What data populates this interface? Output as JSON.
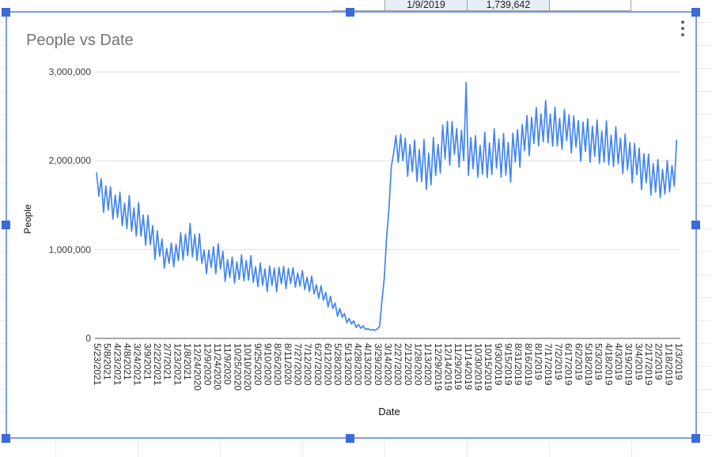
{
  "spreadsheet": {
    "date_cell": "1/9/2019",
    "people_cell": "1,739,642"
  },
  "chart": {
    "title": "People vs Date",
    "menu_icon": "vertical-ellipsis-icon"
  },
  "chart_data": {
    "type": "line",
    "title": "People vs Date",
    "xlabel": "Date",
    "ylabel": "People",
    "legend": "none",
    "grid": true,
    "x_axis": {
      "direction": "dates descend left to right (newest first)",
      "tick_interval_days": 15,
      "tick_labels": [
        "5/23/2021",
        "5/8/2021",
        "4/23/2021",
        "4/8/2021",
        "3/24/2021",
        "3/9/2021",
        "2/22/2021",
        "2/7/2021",
        "1/23/2021",
        "1/8/2021",
        "12/24/2020",
        "12/9/2020",
        "11/24/2020",
        "11/9/2020",
        "10/25/2020",
        "10/10/2020",
        "9/25/2020",
        "9/10/2020",
        "8/26/2020",
        "8/11/2020",
        "7/27/2020",
        "7/12/2020",
        "6/27/2020",
        "6/12/2020",
        "5/28/2020",
        "5/13/2020",
        "4/28/2020",
        "4/13/2020",
        "3/29/2020",
        "3/14/2020",
        "2/27/2020",
        "2/12/2020",
        "1/28/2020",
        "1/13/2020",
        "12/29/2019",
        "12/14/2019",
        "11/29/2019",
        "11/14/2019",
        "10/30/2019",
        "10/15/2019",
        "9/30/2019",
        "9/15/2019",
        "8/31/2019",
        "8/16/2019",
        "8/1/2019",
        "7/17/2019",
        "7/2/2019",
        "6/17/2019",
        "6/2/2019",
        "5/18/2019",
        "5/3/2019",
        "4/18/2019",
        "4/3/2019",
        "3/19/2019",
        "3/4/2019",
        "2/17/2019",
        "2/2/2019",
        "1/18/2019",
        "1/3/2019"
      ]
    },
    "y_axis": {
      "min": 0,
      "max": 3000000,
      "ticks": [
        {
          "value": 0,
          "label": "0"
        },
        {
          "value": 1000000,
          "label": "1,000,000"
        },
        {
          "value": 2000000,
          "label": "2,000,000"
        },
        {
          "value": 3000000,
          "label": "3,000,000"
        }
      ]
    },
    "series": [
      {
        "name": "People",
        "color": "#4285f4",
        "description": "Daily values with a 7-day (weekly) zigzag oscillation; x positions given as tick-label index (0 = 5/23/2021 ... 58 = 1/3/2019, 15 days per index unit).",
        "oscillation_period_days": 7,
        "envelope": [
          [
            0,
            1550000,
            1930000
          ],
          [
            1,
            1350000,
            1800000
          ],
          [
            2,
            1280000,
            1700000
          ],
          [
            3,
            1150000,
            1620000
          ],
          [
            4,
            1080000,
            1580000
          ],
          [
            5,
            1000000,
            1460000
          ],
          [
            6,
            850000,
            1300000
          ],
          [
            7,
            760000,
            1080000
          ],
          [
            8,
            780000,
            1150000
          ],
          [
            9,
            850000,
            1305000
          ],
          [
            10,
            820000,
            1280000
          ],
          [
            11,
            700000,
            1000000
          ],
          [
            12,
            720000,
            1170000
          ],
          [
            13,
            610000,
            960000
          ],
          [
            14,
            580000,
            950000
          ],
          [
            15,
            600000,
            970000
          ],
          [
            16,
            540000,
            880000
          ],
          [
            17,
            500000,
            860000
          ],
          [
            18,
            520000,
            860000
          ],
          [
            19,
            550000,
            860000
          ],
          [
            20,
            550000,
            800000
          ],
          [
            21,
            500000,
            750000
          ],
          [
            22,
            440000,
            650000
          ],
          [
            23,
            350000,
            550000
          ],
          [
            24,
            250000,
            400000
          ],
          [
            25,
            170000,
            260000
          ],
          [
            26,
            110000,
            180000
          ],
          [
            27,
            90000,
            120000
          ],
          [
            27.7,
            87000,
            95000
          ],
          [
            28.2,
            95000,
            120000
          ],
          [
            28.5,
            420000,
            460000
          ],
          [
            28.75,
            720000,
            780000
          ],
          [
            29,
            1210000,
            1270000
          ],
          [
            29.25,
            1560000,
            1640000
          ],
          [
            29.5,
            2050000,
            2150000
          ],
          [
            30,
            2000000,
            2420000
          ],
          [
            31,
            1800000,
            2300000
          ],
          [
            32,
            1700000,
            2280000
          ],
          [
            33,
            1550000,
            2250000
          ],
          [
            34,
            1750000,
            2300000
          ],
          [
            35,
            1900000,
            2600000
          ],
          [
            36,
            1950000,
            2450000
          ],
          [
            37,
            1800000,
            2450000
          ],
          [
            38,
            1750000,
            2300000
          ],
          [
            39,
            1700000,
            2350000
          ],
          [
            40,
            1800000,
            2400000
          ],
          [
            41,
            1650000,
            2350000
          ],
          [
            42,
            1900000,
            2450000
          ],
          [
            43,
            2000000,
            2600000
          ],
          [
            44,
            2100000,
            2650000
          ],
          [
            45,
            2100000,
            2700000
          ],
          [
            46,
            2050000,
            2600000
          ],
          [
            47,
            2100000,
            2650000
          ],
          [
            48,
            2000000,
            2550000
          ],
          [
            49,
            1950000,
            2550000
          ],
          [
            50,
            1900000,
            2500000
          ],
          [
            51,
            1850000,
            2450000
          ],
          [
            52,
            1850000,
            2400000
          ],
          [
            53,
            1750000,
            2350000
          ],
          [
            54,
            1700000,
            2250000
          ],
          [
            55,
            1600000,
            2150000
          ],
          [
            56,
            1500000,
            2050000
          ],
          [
            57,
            1550000,
            2000000
          ],
          [
            57.6,
            1600000,
            2100000
          ],
          [
            58,
            2150000,
            2330000
          ]
        ],
        "peaks": [
          [
            36.9,
            2880000
          ]
        ]
      }
    ]
  },
  "colors": {
    "series_line": "#4285f4",
    "title_text": "#757575",
    "gridline": "#e0e0e0",
    "baseline": "#757575",
    "selection_border": "#7b9de9",
    "selection_handle": "#3b6bd8",
    "cell_fill": "#e8eef7"
  }
}
